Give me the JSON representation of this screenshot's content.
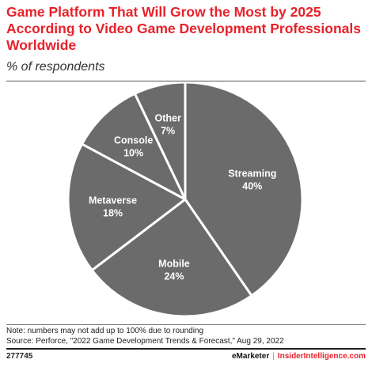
{
  "header": {
    "title": "Game Platform That Will Grow the Most by 2025 According to Video Game Development Professionals Worldwide",
    "subtitle": "% of respondents"
  },
  "chart_data": {
    "type": "pie",
    "slices": [
      {
        "label": "Streaming",
        "value": 40,
        "display": "40%"
      },
      {
        "label": "Mobile",
        "value": 24,
        "display": "24%"
      },
      {
        "label": "Metaverse",
        "value": 18,
        "display": "18%"
      },
      {
        "label": "Console",
        "value": 10,
        "display": "10%"
      },
      {
        "label": "Other",
        "value": 7,
        "display": "7%"
      }
    ],
    "start": "12 o'clock",
    "direction": "clockwise",
    "slice_color": "#6b6b6b",
    "border_color": "#ffffff",
    "label_color": "#ffffff"
  },
  "footer": {
    "note": "Note: numbers may not add up to 100% due to rounding",
    "source": "Source: Perforce, \"2022 Game Development Trends & Forecast,\" Aug 29, 2022",
    "chart_code": "277745",
    "brand_emarketer": "eMarketer",
    "brand_separator": "|",
    "brand_insider": "InsiderIntelligence.com"
  },
  "colors": {
    "title": "#e8212a",
    "brand_accent": "#e8212a"
  }
}
